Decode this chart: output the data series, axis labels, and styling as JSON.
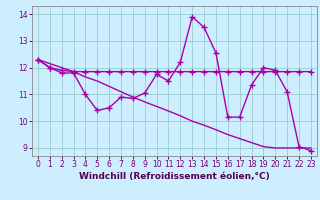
{
  "hours": [
    0,
    1,
    2,
    3,
    4,
    5,
    6,
    7,
    8,
    9,
    10,
    11,
    12,
    13,
    14,
    15,
    16,
    17,
    18,
    19,
    20,
    21,
    22,
    23
  ],
  "windchill": [
    12.3,
    12.0,
    11.8,
    11.8,
    11.0,
    10.4,
    10.5,
    10.9,
    10.85,
    11.05,
    11.75,
    11.5,
    12.2,
    13.9,
    13.5,
    12.55,
    10.15,
    10.15,
    11.35,
    12.0,
    11.9,
    11.1,
    9.05,
    8.9
  ],
  "flat_line": [
    12.3,
    12.0,
    11.9,
    11.85,
    11.85,
    11.85,
    11.85,
    11.85,
    11.85,
    11.85,
    11.85,
    11.85,
    11.85,
    11.85,
    11.85,
    11.85,
    11.85,
    11.85,
    11.85,
    11.85,
    11.85,
    11.85,
    11.85,
    11.85
  ],
  "trend": [
    12.3,
    12.15,
    12.0,
    11.85,
    11.65,
    11.5,
    11.3,
    11.1,
    10.9,
    10.72,
    10.55,
    10.38,
    10.2,
    10.0,
    9.85,
    9.68,
    9.5,
    9.35,
    9.2,
    9.05,
    9.0,
    9.0,
    9.0,
    9.0
  ],
  "line_color": "#aa00aa",
  "bg_color": "#cceeff",
  "grid_color": "#99cccc",
  "xlabel": "Windchill (Refroidissement éolien,°C)",
  "ylim": [
    8.7,
    14.3
  ],
  "xlim": [
    -0.5,
    23.5
  ],
  "yticks": [
    9,
    10,
    11,
    12,
    13,
    14
  ],
  "xticks": [
    0,
    1,
    2,
    3,
    4,
    5,
    6,
    7,
    8,
    9,
    10,
    11,
    12,
    13,
    14,
    15,
    16,
    17,
    18,
    19,
    20,
    21,
    22,
    23
  ],
  "marker": "+",
  "markersize": 5,
  "linewidth": 1.0,
  "tick_fontsize": 5.5,
  "label_fontsize": 6.5
}
